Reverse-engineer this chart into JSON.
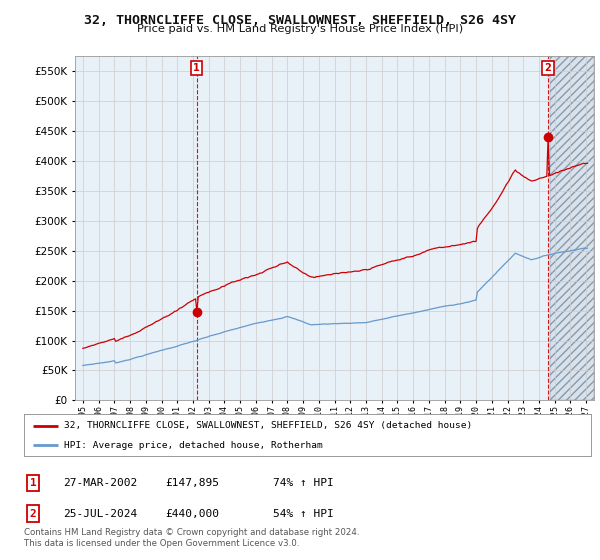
{
  "title": "32, THORNCLIFFE CLOSE, SWALLOWNEST, SHEFFIELD, S26 4SY",
  "subtitle": "Price paid vs. HM Land Registry's House Price Index (HPI)",
  "legend_line1": "32, THORNCLIFFE CLOSE, SWALLOWNEST, SHEFFIELD, S26 4SY (detached house)",
  "legend_line2": "HPI: Average price, detached house, Rotherham",
  "sale1_date": "27-MAR-2002",
  "sale1_price": "£147,895",
  "sale1_hpi": "74% ↑ HPI",
  "sale2_date": "25-JUL-2024",
  "sale2_price": "£440,000",
  "sale2_hpi": "54% ↑ HPI",
  "footnote": "Contains HM Land Registry data © Crown copyright and database right 2024.\nThis data is licensed under the Open Government Licence v3.0.",
  "ylim": [
    0,
    575000
  ],
  "yticks": [
    0,
    50000,
    100000,
    150000,
    200000,
    250000,
    300000,
    350000,
    400000,
    450000,
    500000,
    550000
  ],
  "xlim_start": 1994.5,
  "xlim_end": 2027.5,
  "hpi_color": "#6699cc",
  "property_color": "#cc0000",
  "grid_color": "#cccccc",
  "bg_chart": "#e8f0f8",
  "bg_future_hatch": true,
  "background_color": "#ffffff",
  "sale1_year": 2002.23,
  "sale1_price_val": 147895,
  "sale2_year": 2024.56,
  "sale2_price_val": 440000,
  "future_cutoff": 2024.7
}
